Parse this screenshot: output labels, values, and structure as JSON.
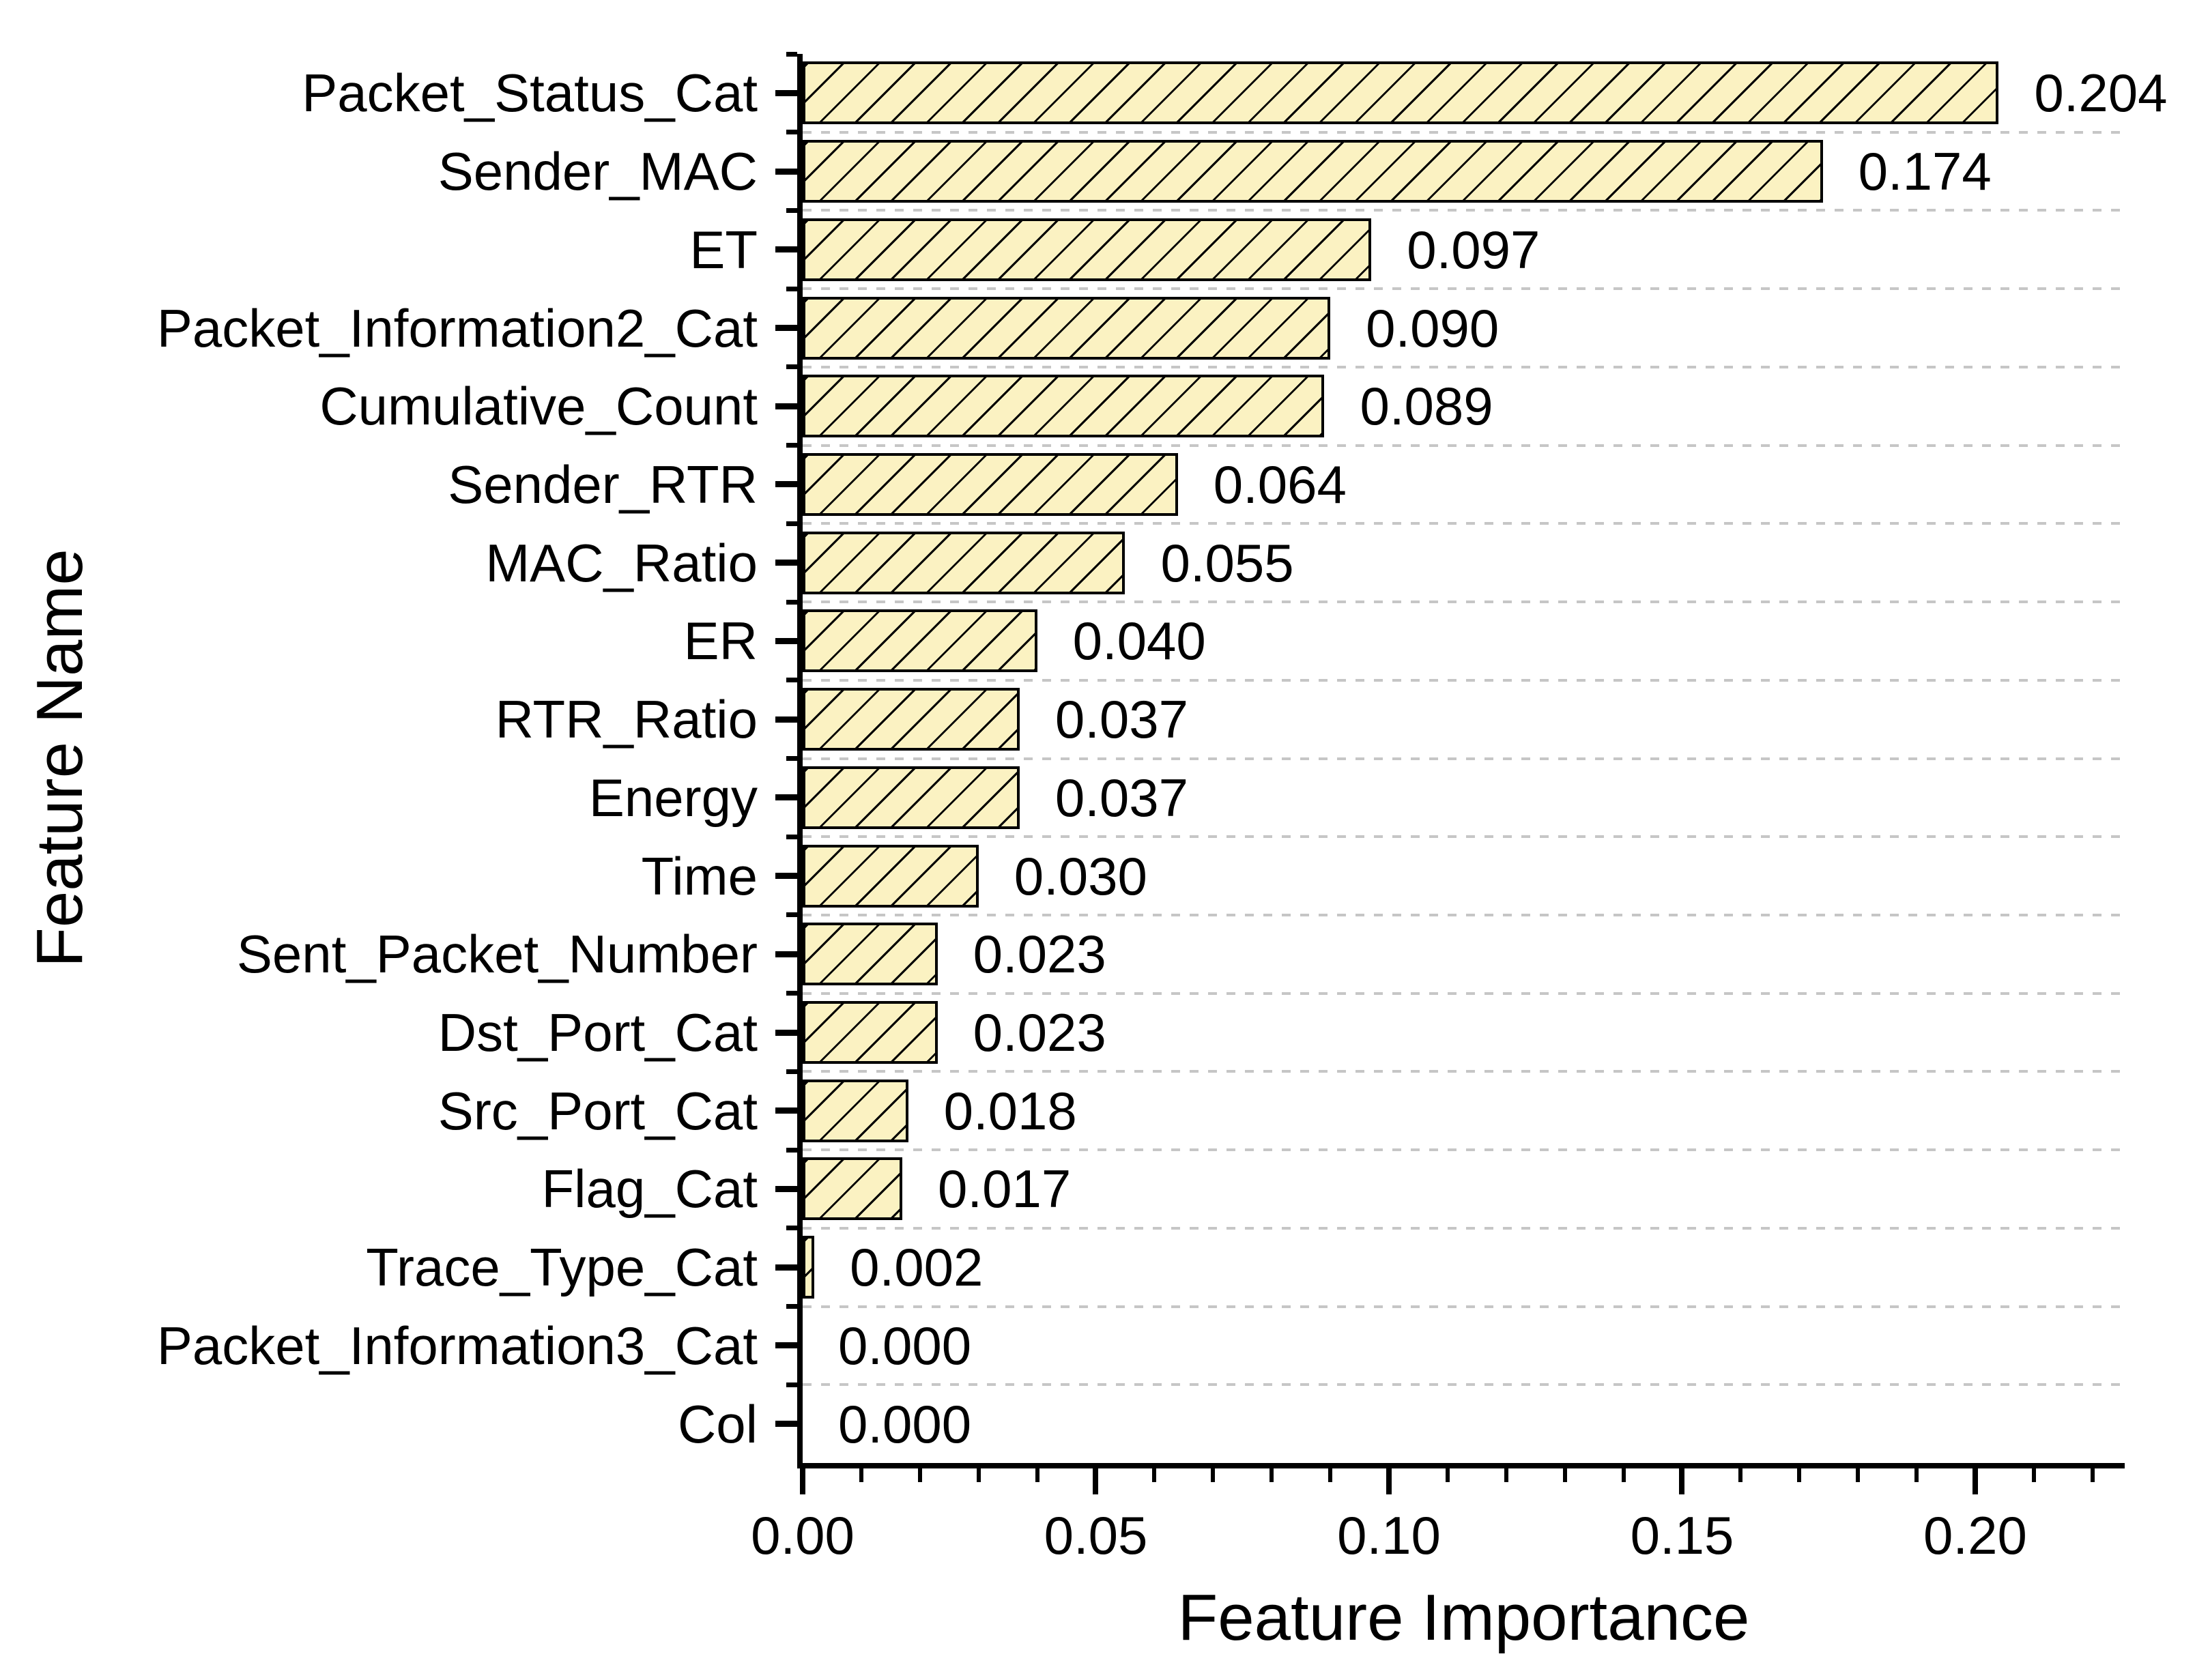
{
  "chart_data": {
    "type": "bar",
    "orientation": "horizontal",
    "title": "",
    "xlabel": "Feature Importance",
    "ylabel": "Feature Name",
    "categories": [
      "Packet_Status_Cat",
      "Sender_MAC",
      "ET",
      "Packet_Information2_Cat",
      "Cumulative_Count",
      "Sender_RTR",
      "MAC_Ratio",
      "ER",
      "RTR_Ratio",
      "Energy",
      "Time",
      "Sent_Packet_Number",
      "Dst_Port_Cat",
      "Src_Port_Cat",
      "Flag_Cat",
      "Trace_Type_Cat",
      "Packet_Information3_Cat",
      "Col"
    ],
    "values": [
      0.204,
      0.174,
      0.097,
      0.09,
      0.089,
      0.064,
      0.055,
      0.04,
      0.037,
      0.037,
      0.03,
      0.023,
      0.023,
      0.018,
      0.017,
      0.002,
      0.0,
      0.0
    ],
    "value_labels": [
      "0.204",
      "0.174",
      "0.097",
      "0.090",
      "0.089",
      "0.064",
      "0.055",
      "0.040",
      "0.037",
      "0.037",
      "0.030",
      "0.023",
      "0.023",
      "0.018",
      "0.017",
      "0.002",
      "0.000",
      "0.000"
    ],
    "xlim": [
      0,
      0.2255
    ],
    "xticks": {
      "values": [
        0,
        0.05,
        0.1,
        0.15,
        0.2
      ],
      "labels": [
        "0.00",
        "0.05",
        "0.10",
        "0.15",
        "0.20"
      ],
      "minor_step": 0.01
    },
    "grid": "dashed horizontal lines between categories",
    "legend": "none",
    "style": {
      "bar_fill": "#FBF2C2",
      "bar_border": "#000000",
      "hatch": "forward-diagonal-lines",
      "hatch_color": "#000000",
      "gridline_color": "#C6C6C6",
      "axis_color": "#000000",
      "text_color": "#000000",
      "background": "#FFFFFF"
    }
  }
}
